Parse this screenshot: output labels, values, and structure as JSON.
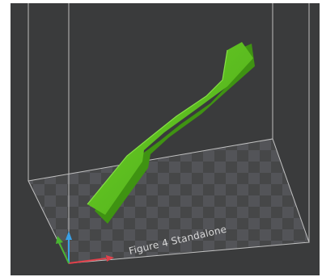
{
  "viewport": {
    "background": "#3a3b3c",
    "plate_label": "Figure 4 Standalone"
  },
  "model": {
    "color": "#5cc21f",
    "shade_color": "#3f9312"
  },
  "axes": {
    "x_color": "#e0404a",
    "y_color": "#49b531",
    "z_color": "#3aa0e6"
  },
  "icons": {
    "build_volume": "build-volume-box",
    "axis_gizmo": "axis-gizmo"
  }
}
